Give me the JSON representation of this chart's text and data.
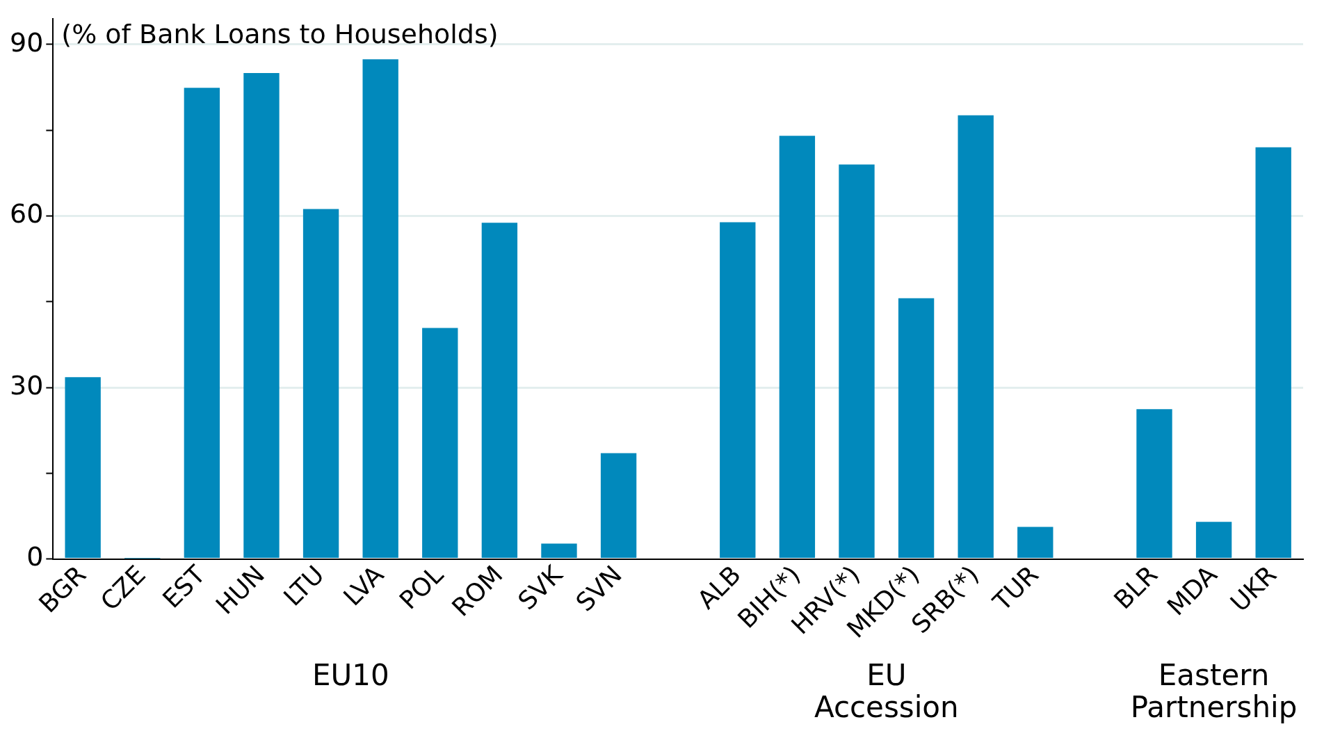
{
  "chart_data": {
    "type": "bar",
    "ylabel": "(% of Bank Loans to Households)",
    "categories": [
      "BGR",
      "CZE",
      "EST",
      "HUN",
      "LTU",
      "LVA",
      "POL",
      "ROM",
      "SVK",
      "SVN",
      null,
      "ALB",
      "BIH(*)",
      "HRV(*)",
      "MKD(*)",
      "SRB(*)",
      "TUR",
      null,
      "BLR",
      "MDA",
      "UKR"
    ],
    "values": [
      31.8,
      0.1,
      82.4,
      85.0,
      61.2,
      87.4,
      40.4,
      58.8,
      2.7,
      18.5,
      null,
      58.9,
      74.0,
      69.0,
      45.6,
      77.6,
      5.6,
      null,
      26.2,
      6.5,
      72.0
    ],
    "color": "#0189bc",
    "ylim": [
      0,
      94.5
    ],
    "yticks": [
      0,
      {
        "value": 15,
        "label": null
      },
      30,
      {
        "value": 45,
        "label": null
      },
      60,
      {
        "value": 75,
        "label": null
      },
      90
    ],
    "grid": "y",
    "annotations": [
      "EU10",
      "EU\nAccession",
      "Eastern\nPartnership"
    ]
  }
}
